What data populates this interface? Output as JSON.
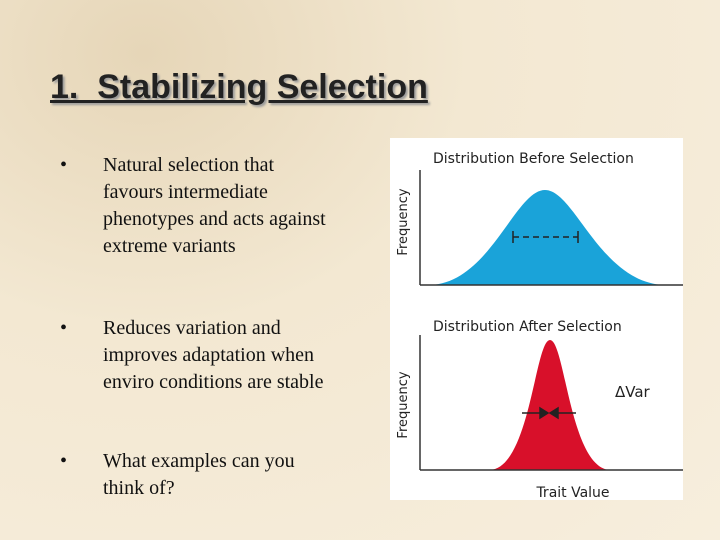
{
  "header": {
    "title": "1.  Stabilizing Selection"
  },
  "bullets": [
    "Natural selection that favours intermediate phenotypes and acts against extreme variants",
    "Reduces variation and improves adaptation when enviro conditions are stable",
    "What examples can you think of?"
  ],
  "figure": {
    "top_title": "Distribution Before Selection",
    "bottom_title": "Distribution After Selection",
    "y_label_top": "Frequency",
    "y_label_bottom": "Frequency",
    "delta_label": "ΔVar",
    "x_label": "Trait Value"
  }
}
